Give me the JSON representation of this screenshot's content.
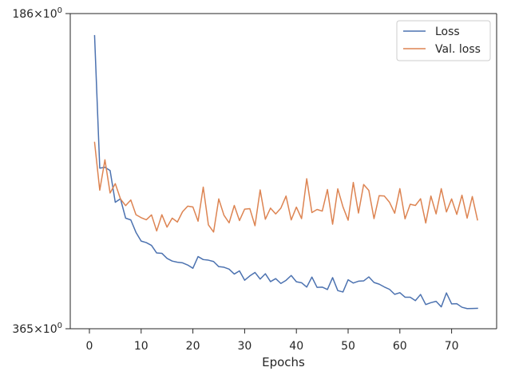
{
  "chart_data": {
    "type": "line",
    "xlabel": "Epochs",
    "ylabel": "",
    "title": "",
    "y_scale": "log",
    "xlim": [
      -3.7,
      78.7
    ],
    "ylim": [
      186,
      365
    ],
    "x_ticks": [
      0,
      10,
      20,
      30,
      40,
      50,
      60,
      70
    ],
    "y_ticks": [
      {
        "value": 186,
        "base": "186",
        "exp": "0"
      },
      {
        "value": 365,
        "base": "365",
        "exp": "0"
      }
    ],
    "y_tick_sep": "×10",
    "grid": false,
    "legend_position": "top-right",
    "x": [
      1,
      2,
      3,
      4,
      5,
      6,
      7,
      8,
      9,
      10,
      11,
      12,
      13,
      14,
      15,
      16,
      17,
      18,
      19,
      20,
      21,
      22,
      23,
      24,
      25,
      26,
      27,
      28,
      29,
      30,
      31,
      32,
      33,
      34,
      35,
      36,
      37,
      38,
      39,
      40,
      41,
      42,
      43,
      44,
      45,
      46,
      47,
      48,
      49,
      50,
      51,
      52,
      53,
      54,
      55,
      56,
      57,
      58,
      59,
      60,
      61,
      62,
      63,
      64,
      65,
      66,
      67,
      68,
      69,
      70,
      71,
      72,
      73,
      74,
      75
    ],
    "series": [
      {
        "name": "Loss",
        "color": "#4c72b0",
        "values": [
          195.0,
          258.9,
          258.4,
          260.2,
          278.5,
          276.4,
          288.1,
          289.2,
          297.0,
          302.6,
          303.6,
          305.4,
          310.4,
          310.6,
          314.0,
          315.8,
          316.6,
          317.0,
          318.5,
          320.7,
          312.8,
          314.8,
          315.2,
          316.1,
          319.6,
          320.0,
          321.3,
          324.7,
          322.5,
          329.0,
          326.0,
          323.6,
          328.2,
          324.5,
          330.0,
          327.9,
          331.3,
          329.1,
          325.7,
          330.1,
          330.8,
          333.9,
          326.8,
          334.1,
          333.9,
          335.6,
          327.2,
          336.4,
          337.4,
          328.7,
          331.0,
          329.7,
          329.5,
          326.7,
          330.6,
          331.8,
          333.8,
          335.5,
          339.1,
          337.9,
          341.2,
          341.2,
          343.7,
          339.2,
          346.6,
          345.2,
          344.2,
          348.3,
          338.1,
          346.1,
          346.0,
          348.6,
          349.6,
          349.5,
          349.4
        ]
      },
      {
        "name": "Val. loss",
        "color": "#dd8452",
        "values": [
          245.0,
          271.4,
          254.3,
          273.0,
          267.6,
          276.5,
          280.5,
          277.1,
          286.0,
          287.8,
          289.1,
          286.1,
          296.1,
          286.0,
          293.7,
          288.1,
          290.5,
          284.2,
          280.8,
          281.3,
          290.0,
          269.6,
          292.3,
          296.8,
          276.5,
          286.3,
          291.0,
          280.4,
          289.6,
          282.6,
          282.3,
          292.8,
          271.2,
          288.8,
          282.0,
          285.5,
          282.0,
          274.8,
          289.2,
          281.4,
          288.4,
          264.8,
          284.7,
          282.8,
          283.8,
          271.0,
          291.9,
          270.6,
          281.2,
          289.4,
          266.9,
          285.0,
          268.1,
          271.5,
          288.4,
          274.6,
          274.8,
          278.5,
          285.1,
          270.5,
          288.5,
          279.7,
          280.4,
          276.4,
          291.1,
          274.8,
          285.5,
          270.5,
          284.3,
          276.5,
          285.8,
          274.3,
          288.1,
          275.1,
          289.2
        ]
      }
    ]
  }
}
